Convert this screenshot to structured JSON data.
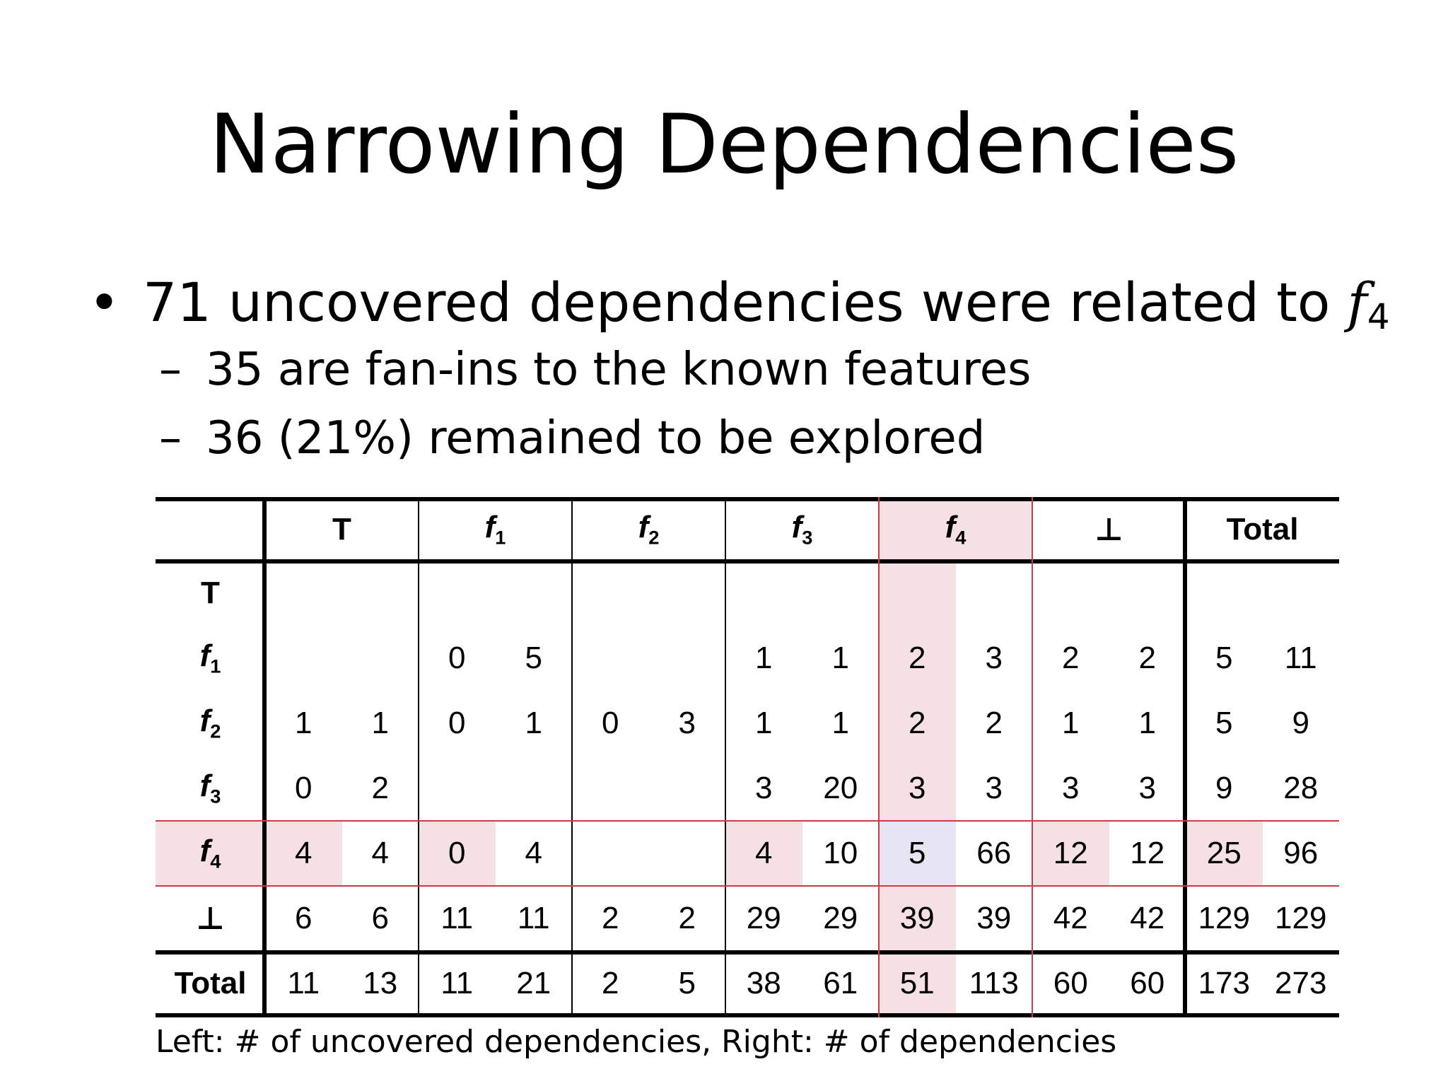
{
  "slide": {
    "title": "Narrowing Dependencies",
    "bullet": {
      "text": "71 uncovered dependencies were related to ",
      "var": "f",
      "sub": "4"
    },
    "subbullets": [
      "35 are fan-ins to the known features",
      "36 (21%) remained to be explored"
    ],
    "caption": "Left: # of uncovered dependencies, Right: # of dependencies"
  },
  "table": {
    "columns": [
      {
        "label": "T",
        "var": "",
        "sub": ""
      },
      {
        "label": "",
        "var": "f",
        "sub": "1"
      },
      {
        "label": "",
        "var": "f",
        "sub": "2"
      },
      {
        "label": "",
        "var": "f",
        "sub": "3"
      },
      {
        "label": "",
        "var": "f",
        "sub": "4"
      },
      {
        "label": "⊥",
        "var": "",
        "sub": ""
      },
      {
        "label": "Total",
        "var": "",
        "sub": ""
      }
    ],
    "rows": [
      {
        "label": "T",
        "var": "",
        "sub": "",
        "values": [
          "",
          "",
          "",
          "",
          "",
          "",
          "",
          "",
          "",
          "",
          "",
          "",
          "",
          ""
        ]
      },
      {
        "label": "",
        "var": "f",
        "sub": "1",
        "values": [
          "",
          "",
          "0",
          "5",
          "",
          "",
          "1",
          "1",
          "2",
          "3",
          "2",
          "2",
          "5",
          "11"
        ]
      },
      {
        "label": "",
        "var": "f",
        "sub": "2",
        "values": [
          "1",
          "1",
          "0",
          "1",
          "0",
          "3",
          "1",
          "1",
          "2",
          "2",
          "1",
          "1",
          "5",
          "9"
        ]
      },
      {
        "label": "",
        "var": "f",
        "sub": "3",
        "values": [
          "0",
          "2",
          "",
          "",
          "",
          "",
          "3",
          "20",
          "3",
          "3",
          "3",
          "3",
          "9",
          "28"
        ]
      },
      {
        "label": "",
        "var": "f",
        "sub": "4",
        "values": [
          "4",
          "4",
          "0",
          "4",
          "",
          "",
          "4",
          "10",
          "5",
          "66",
          "12",
          "12",
          "25",
          "96"
        ]
      },
      {
        "label": "⊥",
        "var": "",
        "sub": "",
        "values": [
          "6",
          "6",
          "11",
          "11",
          "2",
          "2",
          "29",
          "29",
          "39",
          "39",
          "42",
          "42",
          "129",
          "129"
        ]
      },
      {
        "label": "Total",
        "var": "",
        "sub": "",
        "values": [
          "11",
          "13",
          "11",
          "21",
          "2",
          "5",
          "38",
          "61",
          "51",
          "113",
          "60",
          "60",
          "173",
          "273"
        ]
      }
    ],
    "highlight_color": "#f5e1e3",
    "focus_color": "#e7e5f3",
    "rule_color": "#cc3c48"
  }
}
